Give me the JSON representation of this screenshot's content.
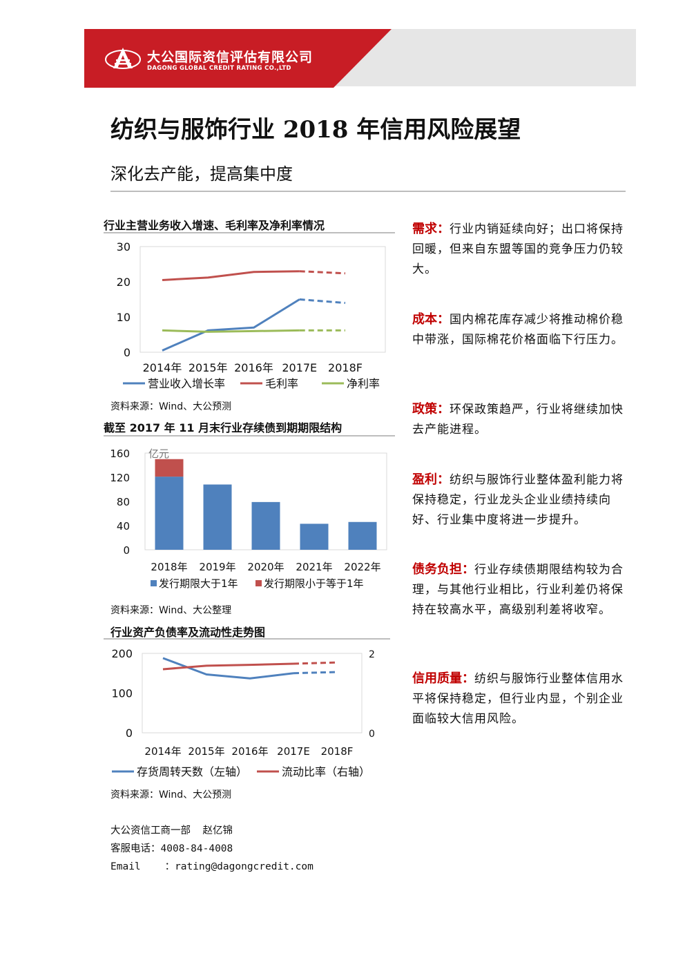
{
  "brand": {
    "name_cn": "大公国际资信评估有限公司",
    "name_en": "DAGONG GLOBAL CREDIT RATING CO.,LTD"
  },
  "colors": {
    "brand_red": "#c81d25",
    "series_blue": "#4f81bd",
    "series_red": "#c0504d",
    "series_green": "#9bbb59",
    "heading_red": "#c00000"
  },
  "report": {
    "title": "纺织与服饰行业 2018 年信用风险展望",
    "subtitle": "深化去产能，提高集中度"
  },
  "charts": [
    {
      "title": "行业主营业务收入增速、毛利率及净利率情况",
      "source": "资料来源：Wind、大公预测",
      "chart_data": {
        "type": "line",
        "categories": [
          "2014年",
          "2015年",
          "2016年",
          "2017E",
          "2018F"
        ],
        "forecast_from_index": 3,
        "series": [
          {
            "name": "营业收入增长率",
            "values": [
              0.5,
              6.2,
              7.0,
              15.0,
              14.0
            ]
          },
          {
            "name": "毛利率",
            "values": [
              20.5,
              21.2,
              22.8,
              23.0,
              22.4
            ]
          },
          {
            "name": "净利率",
            "values": [
              6.2,
              5.8,
              6.0,
              6.2,
              6.2
            ]
          }
        ],
        "ylim": [
          0,
          30
        ],
        "yticks": [
          "0",
          "10",
          "20",
          "30"
        ],
        "legend": "bottom"
      }
    },
    {
      "title": "截至 2017 年 11 月末行业存续债到期期限结构",
      "source": "资料来源：Wind、大公整理",
      "chart_data": {
        "type": "bar",
        "stacked": true,
        "unit": "亿元",
        "categories": [
          "2018年",
          "2019年",
          "2020年",
          "2021年",
          "2022年"
        ],
        "series": [
          {
            "name": "发行期限大于1年",
            "values": [
              121,
              108,
              79,
              43,
              46
            ]
          },
          {
            "name": "发行期限小于等于1年",
            "values": [
              29,
              0,
              0,
              0,
              0
            ]
          }
        ],
        "ylim": [
          0,
          160
        ],
        "yticks": [
          "0",
          "40",
          "80",
          "120",
          "160"
        ],
        "legend": "bottom"
      }
    },
    {
      "title": "行业资产负债率及流动性走势图",
      "source": "资料来源：Wind、大公预测",
      "chart_data": {
        "type": "line",
        "categories": [
          "2014年",
          "2015年",
          "2016年",
          "2017E",
          "2018F"
        ],
        "forecast_from_index": 3,
        "series": [
          {
            "name": "存货周转天数（左轴）",
            "axis": "left",
            "values": [
              188,
              147,
              137,
              150,
              153
            ]
          },
          {
            "name": "流动比率（右轴）",
            "axis": "right",
            "values": [
              1.6,
              1.69,
              1.71,
              1.74,
              1.77
            ]
          }
        ],
        "ylim_left": [
          0,
          200
        ],
        "yticks_left": [
          "0",
          "100",
          "200"
        ],
        "ylim_right": [
          0,
          2
        ],
        "yticks_right": [
          "0",
          "2"
        ],
        "legend": "bottom"
      }
    }
  ],
  "highlights": [
    {
      "head": "需求：",
      "text": "行业内销延续向好；出口将保持回暖，但来自东盟等国的竞争压力仍较大。"
    },
    {
      "head": "成本：",
      "text": "国内棉花库存减少将推动棉价稳中带涨，国际棉花价格面临下行压力。"
    },
    {
      "head": "政策：",
      "text": "环保政策趋严，行业将继续加快去产能进程。"
    },
    {
      "head": "盈利：",
      "text": "纺织与服饰行业整体盈利能力将保持稳定，行业龙头企业业绩持续向好、行业集中度将进一步提升。"
    },
    {
      "head": "债务负担：",
      "text": "行业存续债期限结构较为合理，与其他行业相比，行业利差仍将保持在较高水平，高级别利差将收窄。"
    },
    {
      "head": "信用质量：",
      "text": "纺织与服饰行业整体信用水平将保持稳定，但行业内显，个别企业面临较大信用风险。"
    }
  ],
  "footer": {
    "dept": "大公资信工商一部  赵亿锦",
    "phone": "客服电话：4008-84-4008",
    "email": "Email    ：rating@dagongcredit.com"
  }
}
